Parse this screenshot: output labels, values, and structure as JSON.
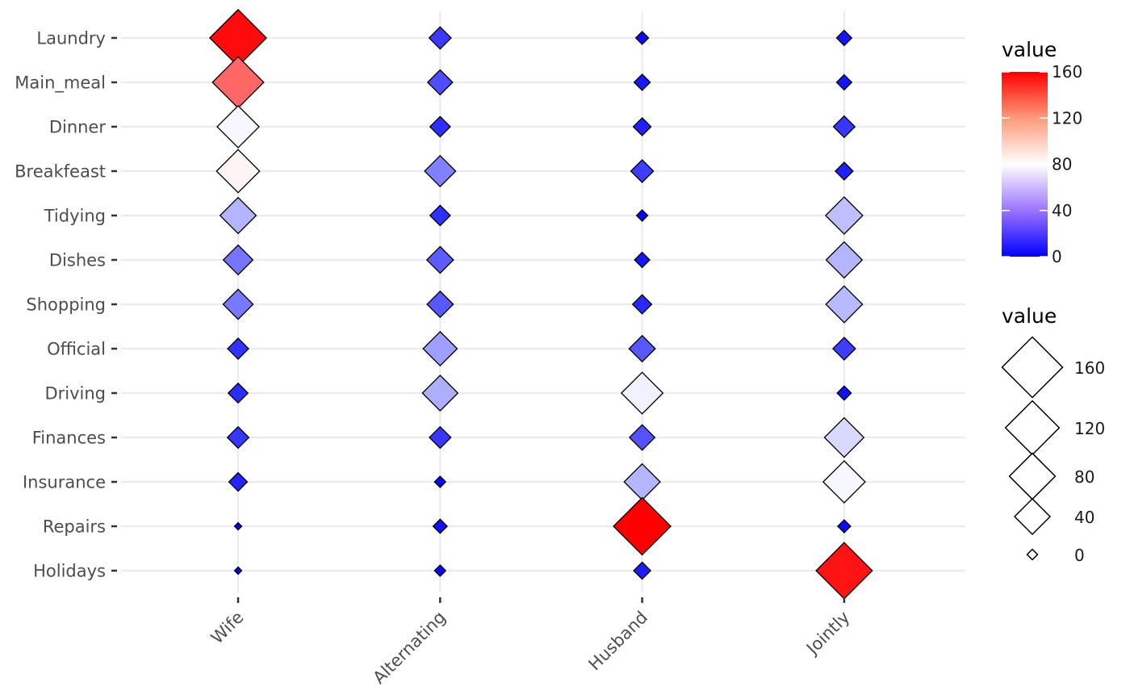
{
  "chart_data": {
    "type": "heatmap",
    "title": "",
    "xlabel": "",
    "ylabel": "",
    "categories_x": [
      "Wife",
      "Alternating",
      "Husband",
      "Jointly"
    ],
    "categories_y": [
      "Laundry",
      "Main_meal",
      "Dinner",
      "Breakfeast",
      "Tidying",
      "Dishes",
      "Shopping",
      "Official",
      "Driving",
      "Finances",
      "Insurance",
      "Repairs",
      "Holidays"
    ],
    "values": [
      [
        156,
        14,
        2,
        4
      ],
      [
        124,
        20,
        5,
        4
      ],
      [
        77,
        11,
        7,
        13
      ],
      [
        82,
        36,
        15,
        7
      ],
      [
        53,
        11,
        1,
        57
      ],
      [
        32,
        24,
        4,
        53
      ],
      [
        33,
        23,
        9,
        55
      ],
      [
        12,
        46,
        23,
        15
      ],
      [
        10,
        51,
        75,
        3
      ],
      [
        13,
        13,
        21,
        66
      ],
      [
        8,
        1,
        53,
        77
      ],
      [
        0,
        3,
        160,
        2
      ],
      [
        0,
        1,
        6,
        153
      ]
    ],
    "color_scale": {
      "low": "#0000ff",
      "mid": "#ffffff",
      "high": "#ff0000",
      "midpoint": 80,
      "limits": [
        0,
        160
      ]
    },
    "color_legend": {
      "title": "value",
      "ticks": [
        "160",
        "120",
        "80",
        "40",
        "0"
      ],
      "tick_values": [
        160,
        120,
        80,
        40,
        0
      ]
    },
    "size_legend": {
      "title": "value",
      "ticks": [
        "160",
        "120",
        "80",
        "40",
        "0"
      ],
      "tick_values": [
        160,
        120,
        80,
        40,
        0
      ]
    },
    "grid": true,
    "legend_position": "right"
  }
}
